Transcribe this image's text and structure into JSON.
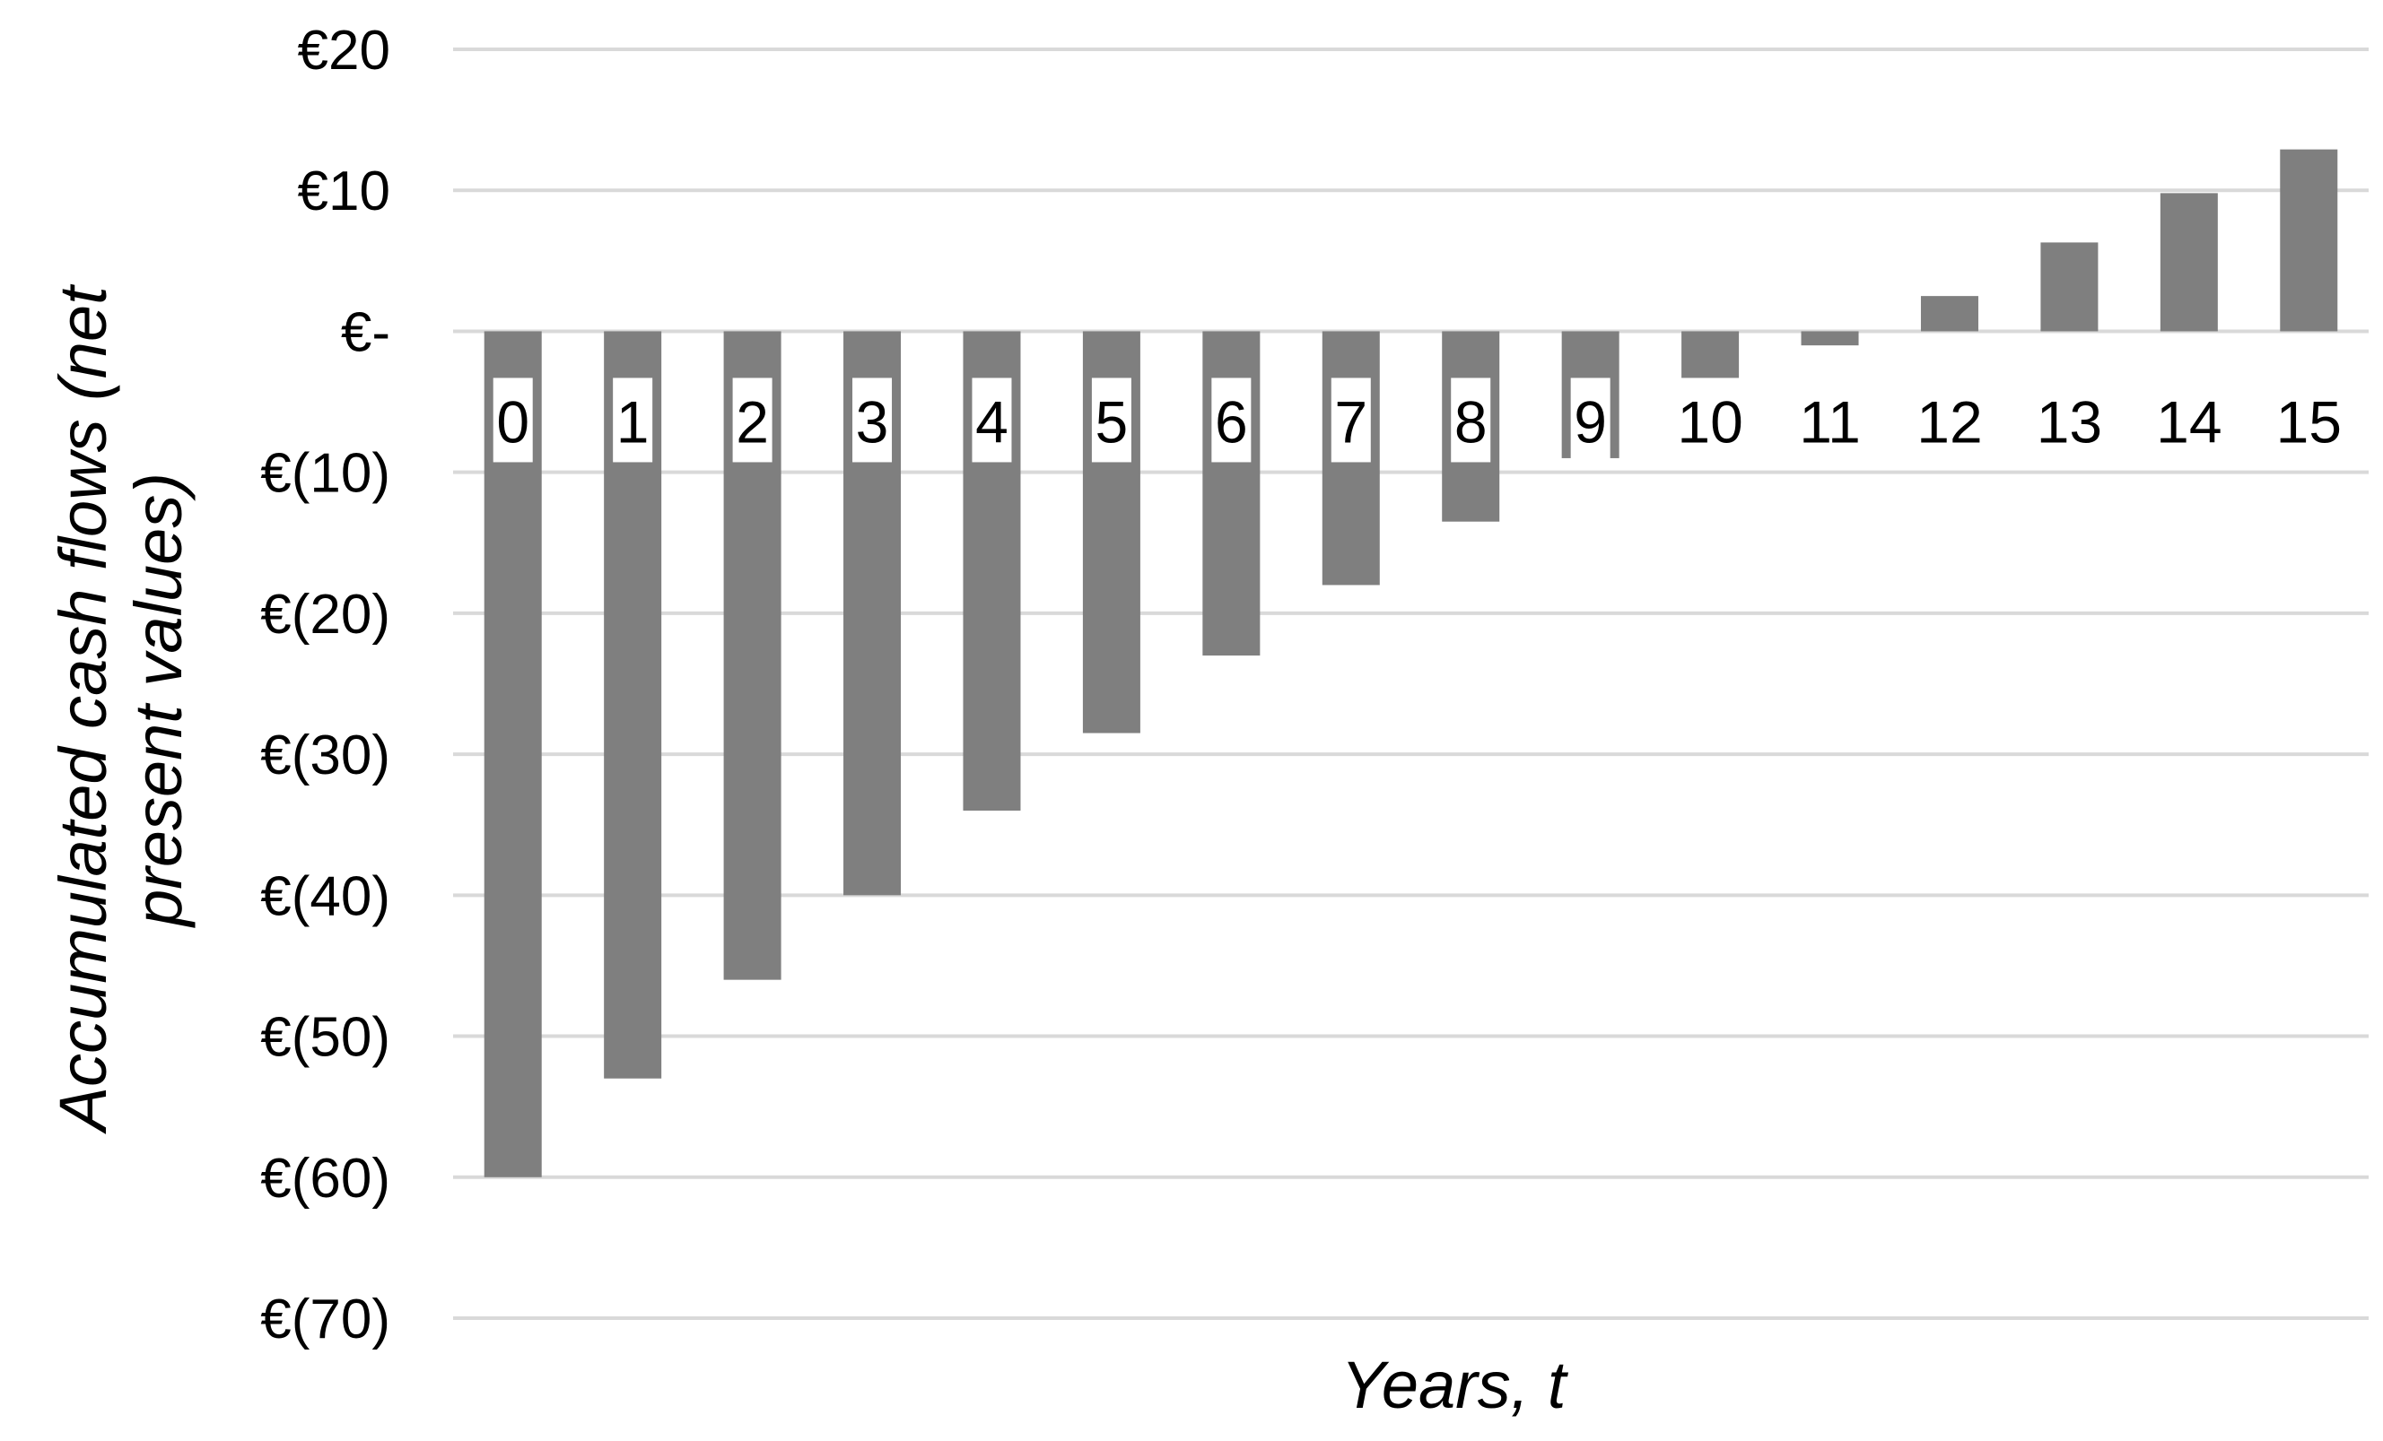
{
  "chart_data": {
    "type": "bar",
    "title": "",
    "xlabel": "Years, t",
    "ylabel_lines": [
      "Accumulated cash flows (net",
      "present values)"
    ],
    "categories": [
      "0",
      "1",
      "2",
      "3",
      "4",
      "5",
      "6",
      "7",
      "8",
      "9",
      "10",
      "11",
      "12",
      "13",
      "14",
      "15"
    ],
    "values": [
      -60,
      -53,
      -46,
      -40,
      -34,
      -28.5,
      -23,
      -18,
      -13.5,
      -9,
      -3.5,
      -1,
      2.5,
      6.3,
      9.8,
      12.9
    ],
    "ylim": [
      -70,
      20
    ],
    "y_ticks": [
      {
        "value": 20,
        "label": "€20"
      },
      {
        "value": 10,
        "label": "€10"
      },
      {
        "value": 0,
        "label": "€-"
      },
      {
        "value": -10,
        "label": "€(10)"
      },
      {
        "value": -20,
        "label": "€(20)"
      },
      {
        "value": -30,
        "label": "€(30)"
      },
      {
        "value": -40,
        "label": "€(40)"
      },
      {
        "value": -50,
        "label": "€(50)"
      },
      {
        "value": -60,
        "label": "€(60)"
      },
      {
        "value": -70,
        "label": "€(70)"
      }
    ],
    "grid": true,
    "legend": "none",
    "colors": {
      "bar": "#7f7f7f",
      "grid": "#d9d9d9",
      "text": "#000000"
    }
  }
}
